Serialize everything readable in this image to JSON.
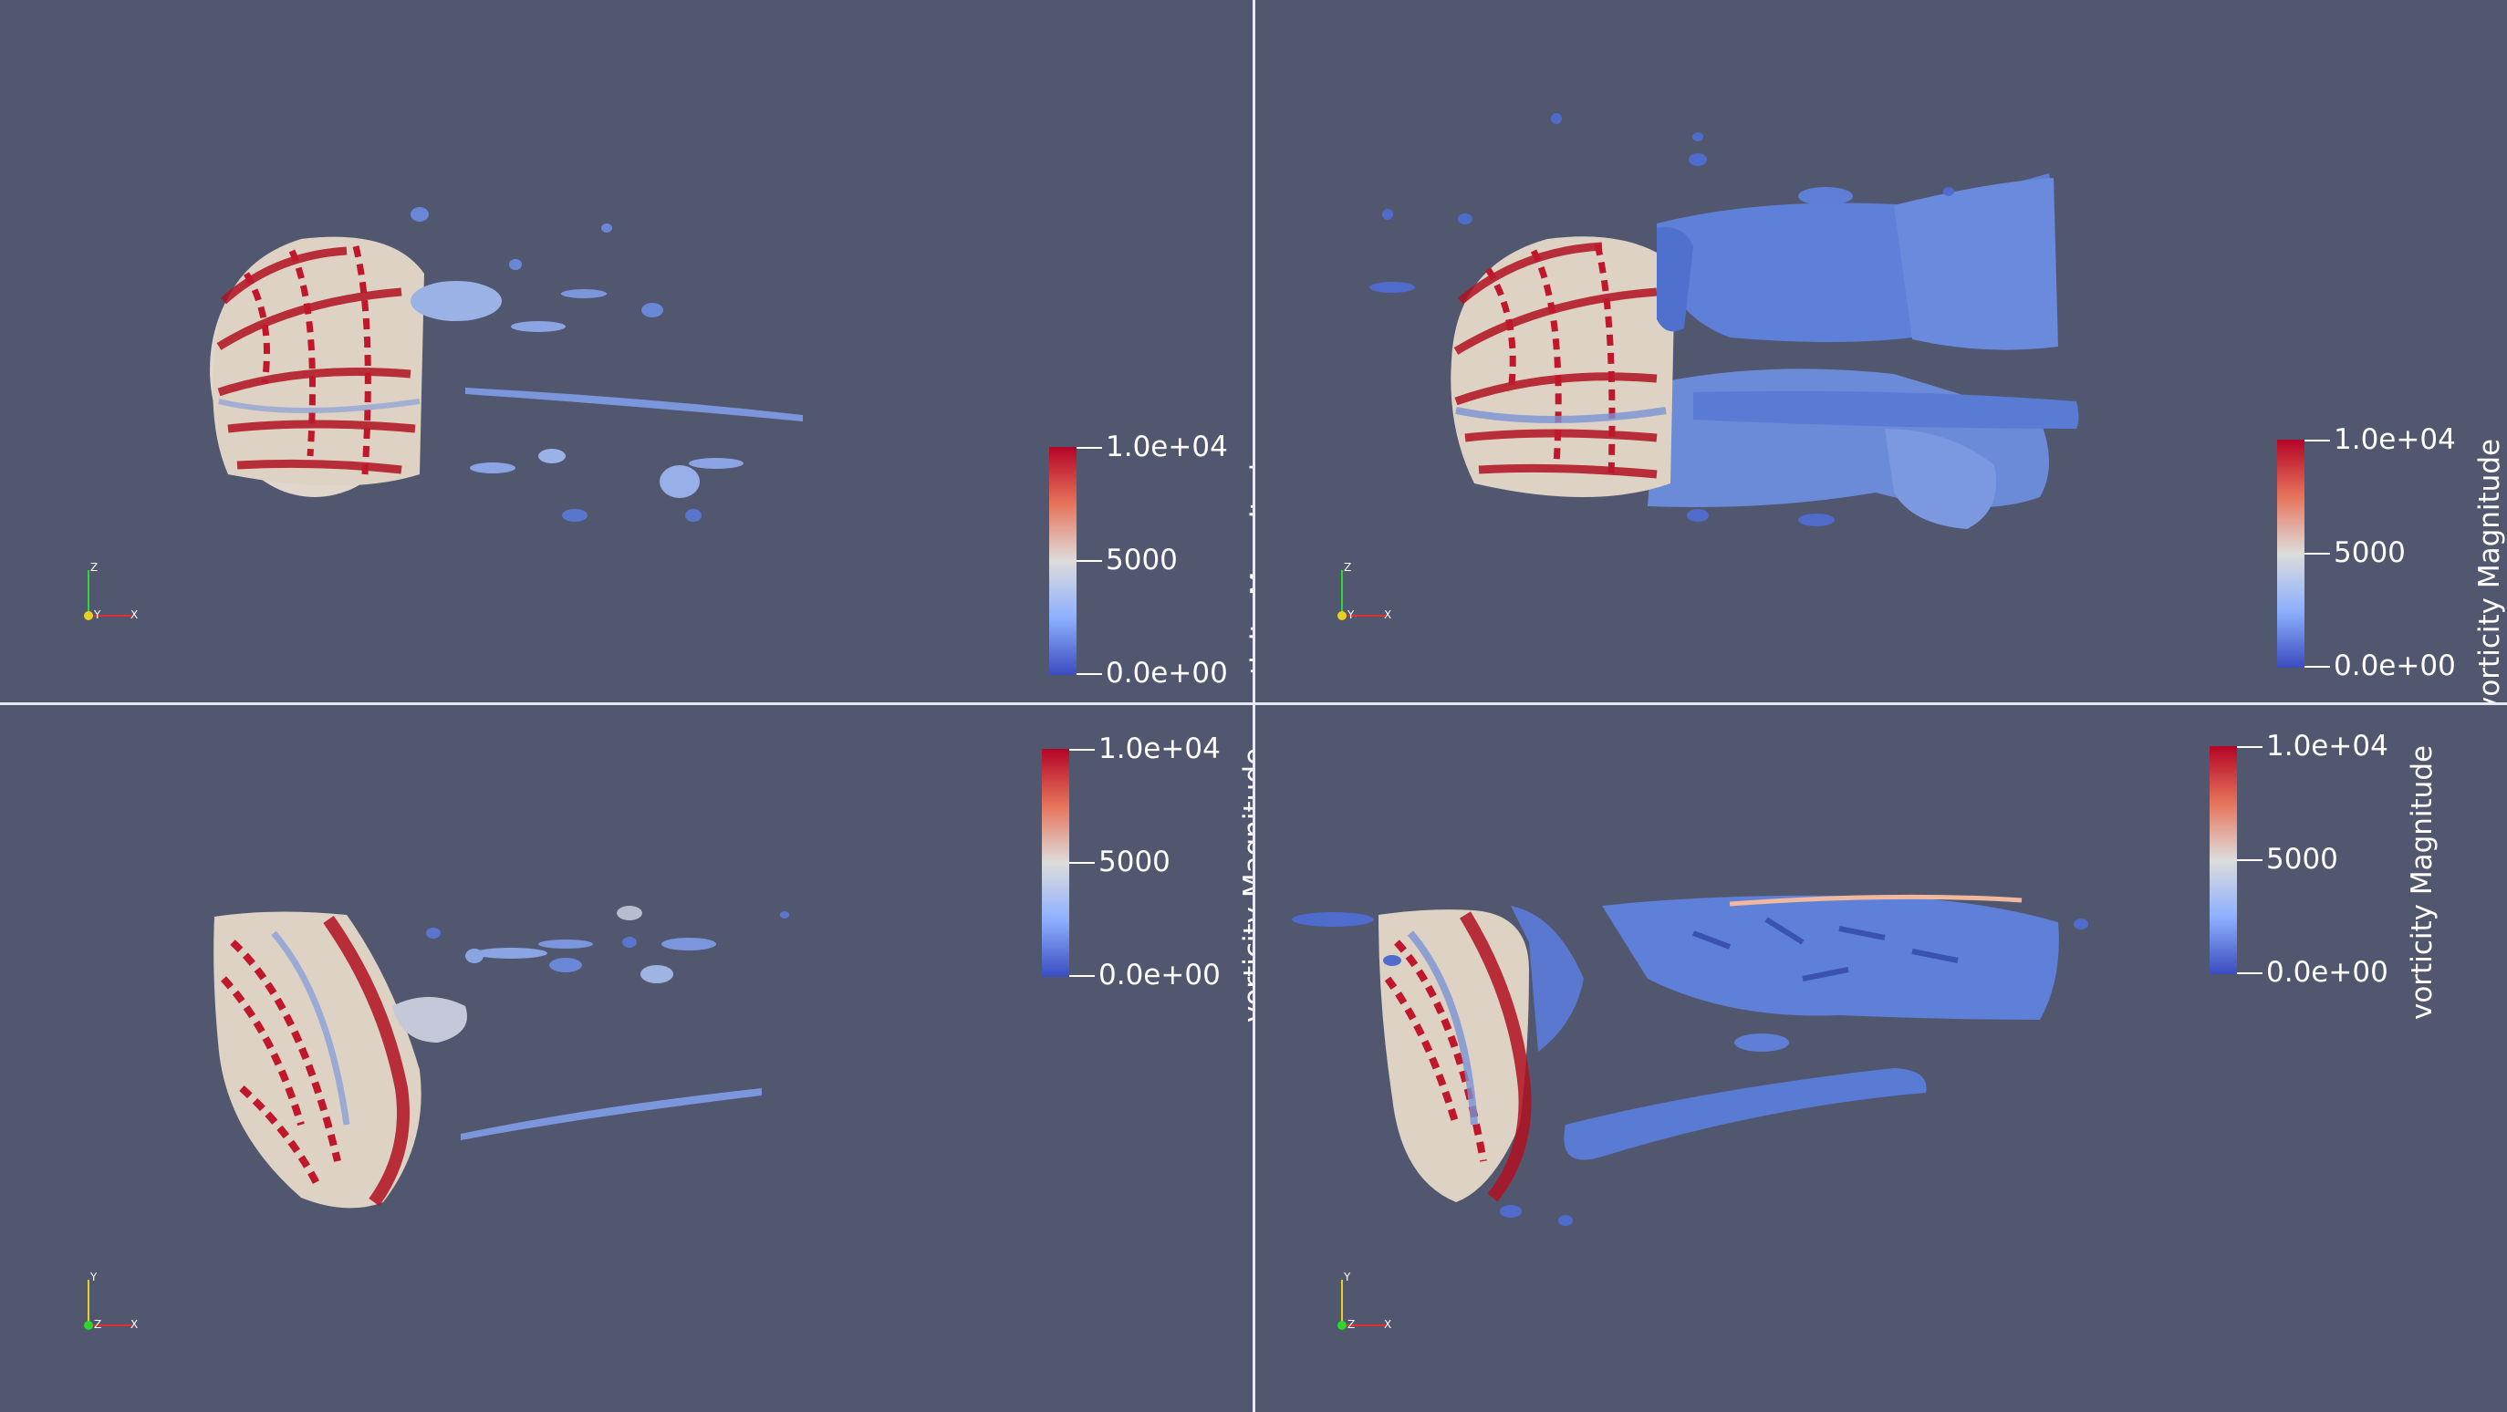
{
  "views": [
    {
      "id": "top-left",
      "legend": {
        "title": "vorticity Magnitude",
        "max_label": "1.0e+04",
        "mid_label": "5000",
        "min_label": "0.0e+00"
      },
      "axes": {
        "vertical": "Z",
        "center": "Y",
        "horizontal": "X"
      }
    },
    {
      "id": "top-right",
      "legend": {
        "title": "vorticity Magnitude",
        "max_label": "1.0e+04",
        "mid_label": "5000",
        "min_label": "0.0e+00"
      },
      "axes": {
        "vertical": "Z",
        "center": "Y",
        "horizontal": "X"
      }
    },
    {
      "id": "bottom-left",
      "legend": {
        "title": "vorticity Magnitude",
        "max_label": "1.0e+04",
        "mid_label": "5000",
        "min_label": "0.0e+00"
      },
      "axes": {
        "vertical": "Y",
        "center": "Z",
        "horizontal": "X"
      }
    },
    {
      "id": "bottom-right",
      "legend": {
        "title": "vorticity Magnitude",
        "max_label": "1.0e+04",
        "mid_label": "5000",
        "min_label": "0.0e+00"
      },
      "axes": {
        "vertical": "Y",
        "center": "Z",
        "horizontal": "X"
      }
    }
  ],
  "colors": {
    "background": "#525770",
    "colormap_high": "#b40426",
    "colormap_mid": "#dddcdb",
    "colormap_low": "#3b4cc0"
  }
}
